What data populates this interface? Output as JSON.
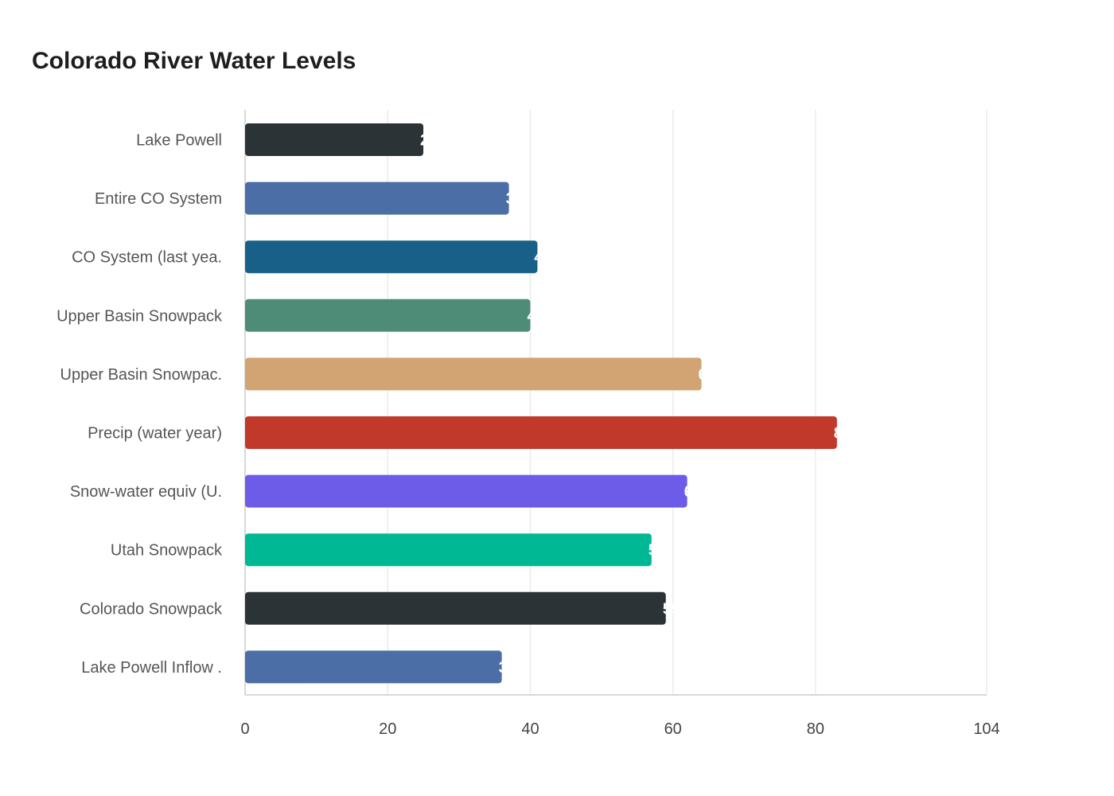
{
  "chart_data": {
    "type": "bar",
    "orientation": "horizontal",
    "title": "Colorado River Water Levels",
    "categories": [
      "Lake Powell",
      "Entire CO System",
      "CO System (last yea.",
      "Upper Basin Snowpack",
      "Upper Basin Snowpac.",
      "Precip (water year)",
      "Snow-water equiv (U.",
      "Utah Snowpack",
      "Colorado Snowpack",
      "Lake Powell Inflow ."
    ],
    "values": [
      25,
      37,
      41,
      40,
      64,
      83,
      62,
      57,
      59,
      36
    ],
    "colors": [
      "#2b3336",
      "#4a6ea5",
      "#196088",
      "#4f8c78",
      "#d2a474",
      "#c0392b",
      "#6c5ce7",
      "#00b894",
      "#2b3336",
      "#4a6ea5"
    ],
    "xlim": [
      0,
      104
    ],
    "xticks": [
      0,
      20,
      40,
      60,
      80,
      104
    ],
    "grid": true,
    "xlabel": "",
    "ylabel": ""
  }
}
